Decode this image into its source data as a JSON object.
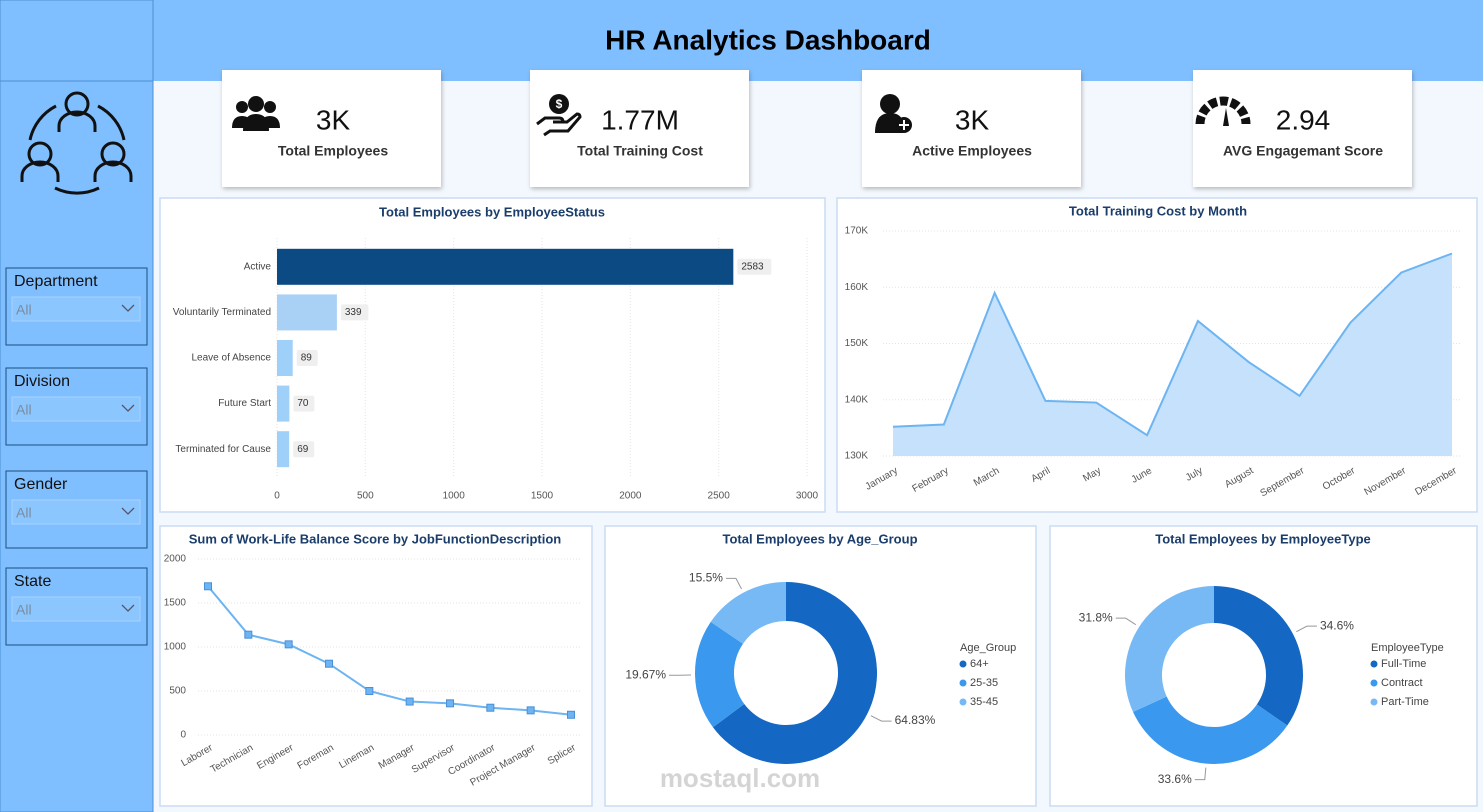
{
  "header": {
    "title": "HR Analytics Dashboard"
  },
  "kpis": [
    {
      "value": "3K",
      "label": "Total Employees"
    },
    {
      "value": "1.77M",
      "label": "Total Training Cost"
    },
    {
      "value": "3K",
      "label": "Active Employees"
    },
    {
      "value": "2.94",
      "label": "AVG Engagemant Score"
    }
  ],
  "filters": [
    {
      "label": "Department",
      "value": "All"
    },
    {
      "label": "Division",
      "value": "All"
    },
    {
      "label": "Gender",
      "value": "All"
    },
    {
      "label": "State",
      "value": "All"
    }
  ],
  "watermark": "mostaql.com",
  "chart_data": [
    {
      "type": "bar",
      "title": "Total Employees by EmployeeStatus",
      "categories": [
        "Active",
        "Voluntarily Terminated",
        "Leave of Absence",
        "Future Start",
        "Terminated for Cause"
      ],
      "values": [
        2583,
        339,
        89,
        70,
        69
      ],
      "colors": [
        "#0c4a84",
        "#a9d0f5",
        "#9fd0fa",
        "#9fd0fa",
        "#9fd0fa"
      ],
      "xlim": [
        0,
        3000
      ],
      "xticks": [
        0,
        500,
        1000,
        1500,
        2000,
        2500,
        3000
      ],
      "grid": true
    },
    {
      "type": "area",
      "title": "Total Training Cost by Month",
      "categories": [
        "January",
        "February",
        "March",
        "April",
        "May",
        "June",
        "July",
        "August",
        "September",
        "October",
        "November",
        "December"
      ],
      "values": [
        135200,
        135600,
        159000,
        139800,
        139500,
        133700,
        154000,
        146700,
        140700,
        153700,
        162600,
        166000
      ],
      "color": "#6cb4f2",
      "fill": "#c5e1fb",
      "ylim": [
        130000,
        170000
      ],
      "yticks": [
        {
          "value": 130000,
          "label": "130K"
        },
        {
          "value": 140000,
          "label": "140K"
        },
        {
          "value": 150000,
          "label": "150K"
        },
        {
          "value": 160000,
          "label": "160K"
        },
        {
          "value": 170000,
          "label": "170K"
        }
      ],
      "grid": true
    },
    {
      "type": "line",
      "title": "Sum of Work-Life Balance Score by JobFunctionDescription",
      "categories": [
        "Laborer",
        "Technician",
        "Engineer",
        "Foreman",
        "Lineman",
        "Manager",
        "Supervisor",
        "Coordinator",
        "Project Manager",
        "Splicer"
      ],
      "values": [
        1690,
        1140,
        1030,
        810,
        500,
        380,
        360,
        310,
        280,
        230
      ],
      "color": "#6cb4f2",
      "marker_color": "#4b8fd6",
      "ylim": [
        0,
        2000
      ],
      "yticks": [
        0,
        500,
        1000,
        1500,
        2000
      ],
      "grid": true
    },
    {
      "type": "donut",
      "title": "Total Employees by Age_Group",
      "legend_title": "Age_Group",
      "categories": [
        "64+",
        "25-35",
        "35-45"
      ],
      "values": [
        64.83,
        19.67,
        15.5
      ],
      "value_labels": [
        "64.83%",
        "19.67%",
        "15.5%"
      ],
      "colors": [
        "#1467c2",
        "#3a98ee",
        "#77b9f5"
      ]
    },
    {
      "type": "donut",
      "title": "Total Employees by EmployeeType",
      "legend_title": "EmployeeType",
      "categories": [
        "Full-Time",
        "Contract",
        "Part-Time"
      ],
      "values": [
        34.6,
        33.6,
        31.8
      ],
      "value_labels": [
        "34.6%",
        "33.6%",
        "31.8%"
      ],
      "colors": [
        "#1467c2",
        "#3a98ee",
        "#77b9f5"
      ]
    }
  ]
}
